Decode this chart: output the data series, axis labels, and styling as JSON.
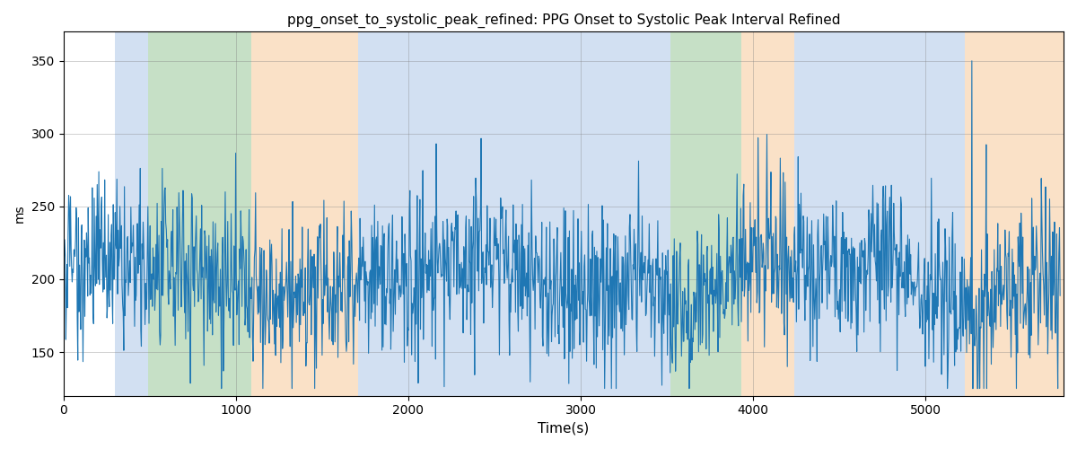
{
  "title": "ppg_onset_to_systolic_peak_refined: PPG Onset to Systolic Peak Interval Refined",
  "xlabel": "Time(s)",
  "ylabel": "ms",
  "xlim": [
    0,
    5800
  ],
  "ylim": [
    120,
    370
  ],
  "yticks": [
    150,
    200,
    250,
    300,
    350
  ],
  "xticks": [
    0,
    1000,
    2000,
    3000,
    4000,
    5000
  ],
  "line_color": "#1f77b4",
  "line_width": 0.8,
  "seed": 42,
  "background_color": "#ffffff",
  "regions": [
    {
      "xmin": 300,
      "xmax": 490,
      "color": "#aec7e8",
      "alpha": 0.55
    },
    {
      "xmin": 490,
      "xmax": 1090,
      "color": "#98c898",
      "alpha": 0.55
    },
    {
      "xmin": 1090,
      "xmax": 1710,
      "color": "#f7c99a",
      "alpha": 0.55
    },
    {
      "xmin": 1710,
      "xmax": 2530,
      "color": "#aec7e8",
      "alpha": 0.55
    },
    {
      "xmin": 2530,
      "xmax": 2650,
      "color": "#aec7e8",
      "alpha": 0.55
    },
    {
      "xmin": 2650,
      "xmax": 3120,
      "color": "#aec7e8",
      "alpha": 0.55
    },
    {
      "xmin": 3120,
      "xmax": 3160,
      "color": "#aec7e8",
      "alpha": 0.55
    },
    {
      "xmin": 3160,
      "xmax": 3520,
      "color": "#aec7e8",
      "alpha": 0.55
    },
    {
      "xmin": 3520,
      "xmax": 3930,
      "color": "#98c898",
      "alpha": 0.55
    },
    {
      "xmin": 3930,
      "xmax": 4240,
      "color": "#f7c99a",
      "alpha": 0.55
    },
    {
      "xmin": 4240,
      "xmax": 5080,
      "color": "#aec7e8",
      "alpha": 0.55
    },
    {
      "xmin": 5080,
      "xmax": 5230,
      "color": "#aec7e8",
      "alpha": 0.55
    },
    {
      "xmin": 5230,
      "xmax": 5800,
      "color": "#f7c99a",
      "alpha": 0.55
    }
  ]
}
